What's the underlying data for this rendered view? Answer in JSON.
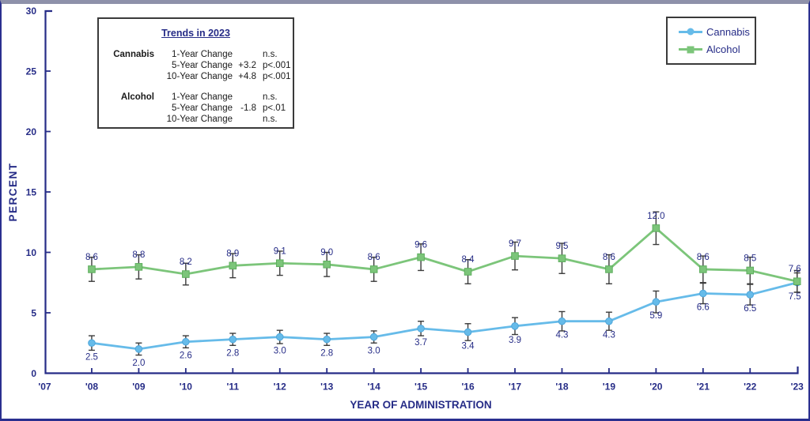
{
  "colors": {
    "navy": "#262C87",
    "cannabis": "#66BBE9",
    "cannabis_edge": "#4FA6DA",
    "alcohol": "#7CC57A",
    "alcohol_edge": "#5EAE5E",
    "error_bar": "#3B3B3B",
    "box_border": "#3A3A3A",
    "top_strip": "#8E91AA"
  },
  "trends": {
    "title": "Trends in 2023",
    "groups": [
      {
        "name": "Cannabis",
        "rows": [
          {
            "metric": "1-Year Change",
            "value": "",
            "sig": "n.s."
          },
          {
            "metric": "5-Year Change",
            "value": "+3.2",
            "sig": "p<.001"
          },
          {
            "metric": "10-Year Change",
            "value": "+4.8",
            "sig": "p<.001"
          }
        ]
      },
      {
        "name": "Alcohol",
        "rows": [
          {
            "metric": "1-Year Change",
            "value": "",
            "sig": "n.s."
          },
          {
            "metric": "5-Year Change",
            "value": "-1.8",
            "sig": "p<.01"
          },
          {
            "metric": "10-Year Change",
            "value": "",
            "sig": "n.s."
          }
        ]
      }
    ]
  },
  "legend": {
    "items": [
      {
        "label": "Cannabis",
        "marker": "circle",
        "color": "#66BBE9"
      },
      {
        "label": "Alcohol",
        "marker": "square",
        "color": "#7CC57A"
      }
    ]
  },
  "chart_data": {
    "type": "line",
    "title": "",
    "xlabel": "YEAR OF ADMINISTRATION",
    "ylabel": "PERCENT",
    "ylim": [
      0,
      30
    ],
    "yticks": [
      0,
      5,
      10,
      15,
      20,
      25,
      30
    ],
    "x_axis_labels": [
      "'07",
      "'08",
      "'09",
      "'10",
      "'11",
      "'12",
      "'13",
      "'14",
      "'15",
      "'16",
      "'17",
      "'18",
      "'19",
      "'20",
      "'21",
      "'22",
      "'23"
    ],
    "categories": [
      "'08",
      "'09",
      "'10",
      "'11",
      "'12",
      "'13",
      "'14",
      "'15",
      "'16",
      "'17",
      "'18",
      "'19",
      "'20",
      "'21",
      "'22",
      "'23"
    ],
    "grid": false,
    "legend_position": "top-right",
    "error_bars": true,
    "series": [
      {
        "name": "Cannabis",
        "color": "#66BBE9",
        "edge": "#4FA6DA",
        "marker": "circle",
        "label_position": "below",
        "values": [
          2.5,
          2.0,
          2.6,
          2.8,
          3.0,
          2.8,
          3.0,
          3.7,
          3.4,
          3.9,
          4.3,
          4.3,
          5.9,
          6.6,
          6.5,
          7.5
        ],
        "error_bars_est": [
          0.6,
          0.5,
          0.5,
          0.5,
          0.55,
          0.5,
          0.5,
          0.6,
          0.7,
          0.7,
          0.8,
          0.75,
          0.9,
          0.85,
          0.85,
          0.8
        ]
      },
      {
        "name": "Alcohol",
        "color": "#7CC57A",
        "edge": "#5EAE5E",
        "marker": "square",
        "label_position": "above",
        "values": [
          8.6,
          8.8,
          8.2,
          8.9,
          9.1,
          9.0,
          8.6,
          9.6,
          8.4,
          9.7,
          9.5,
          8.6,
          12.0,
          8.6,
          8.5,
          7.6
        ],
        "error_bars_est": [
          1.0,
          1.0,
          0.9,
          1.0,
          1.0,
          1.0,
          1.0,
          1.1,
          1.0,
          1.15,
          1.25,
          1.2,
          1.35,
          1.1,
          1.1,
          0.9
        ]
      }
    ]
  }
}
